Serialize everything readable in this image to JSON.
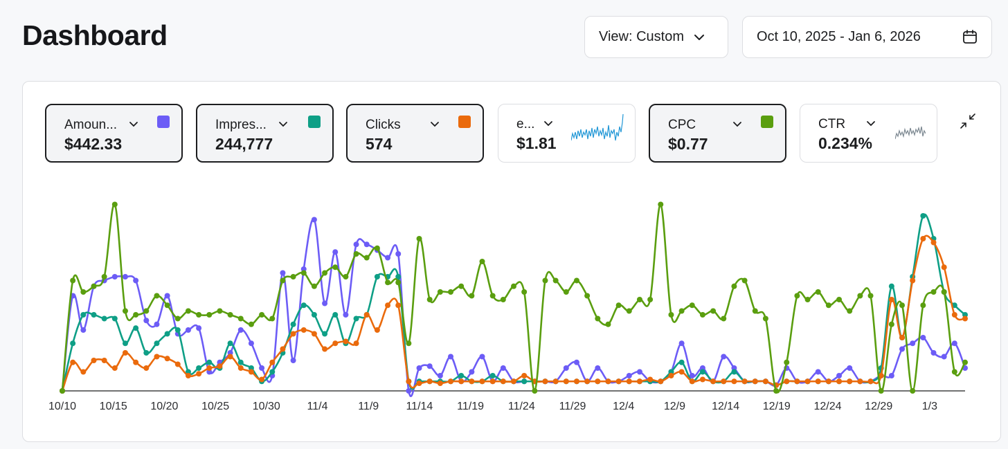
{
  "header": {
    "title": "Dashboard",
    "view_label": "View: Custom",
    "date_range": "Oct 10, 2025 - Jan 6, 2026"
  },
  "metrics": [
    {
      "label": "Amoun...",
      "value": "$442.33",
      "color": "#6c5cf6",
      "active": true
    },
    {
      "label": "Impres...",
      "value": "244,777",
      "color": "#0e9f86",
      "active": true
    },
    {
      "label": "Clicks",
      "value": "574",
      "color": "#ea6a0c",
      "active": true
    },
    {
      "label": "e...",
      "value": "$1.81",
      "color": "#2197d6",
      "active": false
    },
    {
      "label": "CPC",
      "value": "$0.77",
      "color": "#5a9e0f",
      "active": true
    },
    {
      "label": "CTR",
      "value": "0.234%",
      "color": "#7b8790",
      "active": false
    }
  ],
  "chart_data": {
    "type": "line",
    "x_labels": [
      "10/10",
      "10/15",
      "10/20",
      "10/25",
      "10/30",
      "11/4",
      "11/9",
      "11/14",
      "11/19",
      "11/24",
      "11/29",
      "12/4",
      "12/9",
      "12/14",
      "12/19",
      "12/24",
      "12/29",
      "1/3"
    ],
    "ylim": [
      0,
      100
    ],
    "series": [
      {
        "name": "Amount",
        "color": "#6c5cf6",
        "values": [
          0,
          50,
          32,
          55,
          58,
          60,
          60,
          58,
          37,
          35,
          50,
          30,
          32,
          33,
          10,
          15,
          20,
          32,
          25,
          12,
          8,
          62,
          16,
          64,
          90,
          46,
          73,
          40,
          77,
          77,
          74,
          70,
          72,
          0,
          12,
          13,
          8,
          18,
          5,
          10,
          18,
          5,
          12,
          5,
          5,
          5,
          5,
          5,
          12,
          15,
          5,
          12,
          5,
          5,
          8,
          10,
          5,
          5,
          10,
          25,
          8,
          12,
          5,
          18,
          12,
          5,
          5,
          5,
          3,
          12,
          5,
          5,
          10,
          5,
          8,
          12,
          5,
          5,
          8,
          8,
          22,
          25,
          28,
          20,
          18,
          25,
          12
        ]
      },
      {
        "name": "Impressions",
        "color": "#0e9f86",
        "values": [
          0,
          25,
          40,
          40,
          38,
          38,
          25,
          33,
          20,
          25,
          30,
          32,
          10,
          12,
          15,
          12,
          25,
          15,
          12,
          5,
          10,
          20,
          35,
          45,
          40,
          30,
          40,
          25,
          38,
          40,
          60,
          60,
          60,
          5,
          5,
          5,
          5,
          5,
          8,
          5,
          5,
          8,
          5,
          5,
          5,
          5,
          5,
          5,
          5,
          5,
          5,
          5,
          5,
          5,
          5,
          5,
          5,
          5,
          10,
          15,
          5,
          10,
          5,
          5,
          10,
          5,
          5,
          5,
          3,
          5,
          5,
          5,
          5,
          5,
          5,
          5,
          5,
          5,
          12,
          55,
          28,
          60,
          92,
          80,
          52,
          45,
          40
        ]
      },
      {
        "name": "Clicks",
        "color": "#ea6a0c",
        "values": [
          0,
          15,
          10,
          16,
          16,
          12,
          20,
          15,
          12,
          18,
          17,
          14,
          8,
          9,
          12,
          13,
          18,
          12,
          10,
          6,
          15,
          22,
          30,
          32,
          30,
          22,
          25,
          26,
          25,
          40,
          32,
          45,
          45,
          5,
          4,
          5,
          4,
          5,
          5,
          5,
          5,
          5,
          5,
          5,
          8,
          5,
          5,
          5,
          5,
          5,
          5,
          5,
          5,
          5,
          5,
          5,
          6,
          5,
          8,
          10,
          5,
          6,
          5,
          5,
          5,
          5,
          5,
          5,
          3,
          5,
          5,
          5,
          5,
          5,
          5,
          5,
          5,
          5,
          8,
          48,
          28,
          58,
          80,
          78,
          65,
          40,
          38
        ]
      },
      {
        "name": "CPC",
        "color": "#5a9e0f",
        "values": [
          0,
          58,
          52,
          55,
          60,
          98,
          42,
          40,
          42,
          50,
          45,
          38,
          42,
          40,
          40,
          42,
          40,
          38,
          35,
          40,
          38,
          58,
          60,
          62,
          55,
          62,
          65,
          60,
          72,
          70,
          75,
          57,
          57,
          25,
          80,
          48,
          52,
          52,
          55,
          50,
          68,
          50,
          48,
          55,
          52,
          0,
          58,
          58,
          52,
          58,
          50,
          38,
          35,
          45,
          42,
          48,
          48,
          98,
          40,
          42,
          45,
          40,
          42,
          38,
          55,
          58,
          42,
          38,
          0,
          15,
          50,
          48,
          52,
          45,
          48,
          42,
          50,
          50,
          0,
          35,
          45,
          0,
          45,
          52,
          52,
          10,
          15
        ]
      }
    ]
  }
}
